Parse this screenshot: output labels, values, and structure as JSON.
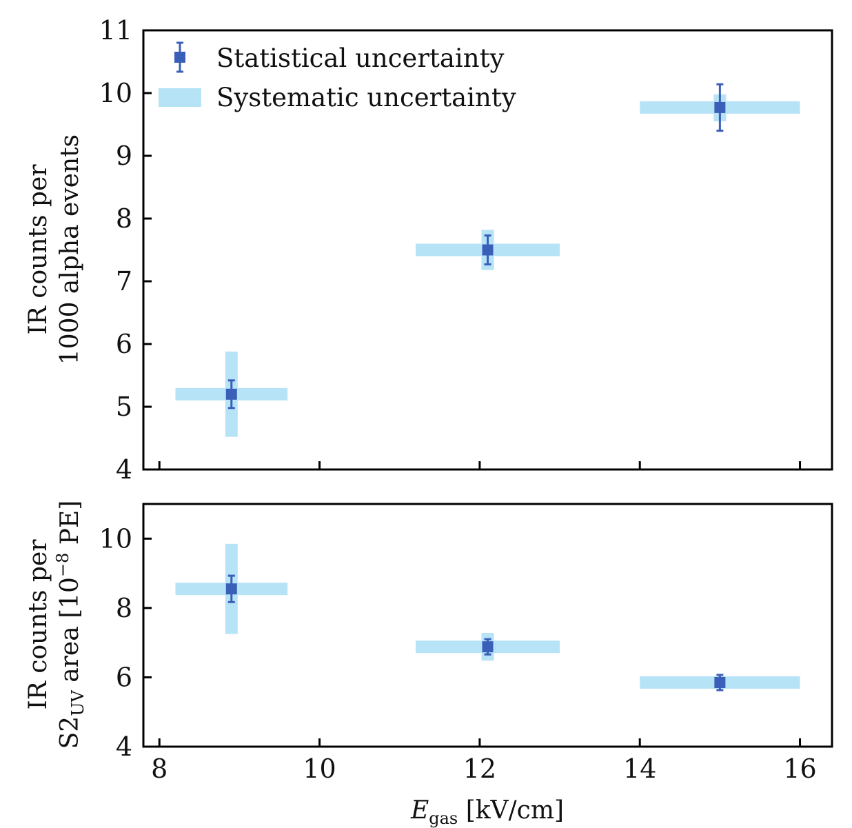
{
  "colors": {
    "statistical": "#3a5fb8",
    "systematic": "#b7e3f7",
    "axis": "#000000"
  },
  "legend": {
    "statistical": "Statistical uncertainty",
    "systematic": "Systematic uncertainty"
  },
  "xlabel": {
    "symbol": "E",
    "subscript": "gas",
    "unit": " [kV/cm]"
  },
  "chart_data": [
    {
      "type": "scatter",
      "panel": "top",
      "ylabel_line1": "IR counts per",
      "ylabel_line2": "1000 alpha events",
      "xlim": [
        7.8,
        16.4
      ],
      "ylim": [
        4,
        11
      ],
      "xticks": [
        8,
        10,
        12,
        14,
        16
      ],
      "yticks": [
        4,
        5,
        6,
        7,
        8,
        9,
        10,
        11
      ],
      "show_xtick_labels": false,
      "points": [
        {
          "x": 8.9,
          "y": 5.2,
          "stat_err": 0.22,
          "sys_x": [
            8.2,
            9.6
          ],
          "sys_y": [
            4.52,
            5.88
          ]
        },
        {
          "x": 12.1,
          "y": 7.5,
          "stat_err": 0.23,
          "sys_x": [
            11.2,
            13.0
          ],
          "sys_y": [
            7.18,
            7.82
          ]
        },
        {
          "x": 15.0,
          "y": 9.77,
          "stat_err": 0.37,
          "sys_x": [
            14.0,
            16.0
          ],
          "sys_y": [
            9.55,
            9.98
          ]
        }
      ]
    },
    {
      "type": "scatter",
      "panel": "bottom",
      "ylabel_line1": "IR counts per",
      "ylabel_line2_pre": "S2",
      "ylabel_line2_sub": "UV",
      "ylabel_line2_mid": " area [10",
      "ylabel_line2_sup": "−8",
      "ylabel_line2_post": " PE]",
      "xlim": [
        7.8,
        16.4
      ],
      "ylim": [
        4,
        11
      ],
      "xticks": [
        8,
        10,
        12,
        14,
        16
      ],
      "yticks": [
        4,
        6,
        8,
        10
      ],
      "show_xtick_labels": true,
      "points": [
        {
          "x": 8.9,
          "y": 8.55,
          "stat_err": 0.38,
          "sys_x": [
            8.2,
            9.6
          ],
          "sys_y": [
            7.25,
            9.85
          ]
        },
        {
          "x": 12.1,
          "y": 6.88,
          "stat_err": 0.22,
          "sys_x": [
            11.2,
            13.0
          ],
          "sys_y": [
            6.48,
            7.28
          ]
        },
        {
          "x": 15.0,
          "y": 5.85,
          "stat_err": 0.22,
          "sys_x": [
            14.0,
            16.0
          ],
          "sys_y": [
            5.73,
            5.97
          ]
        }
      ]
    }
  ]
}
